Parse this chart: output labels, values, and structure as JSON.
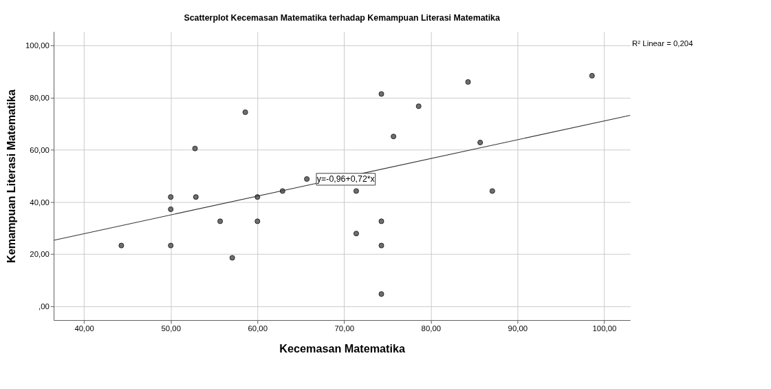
{
  "chart_data": {
    "type": "scatter",
    "title": "Scatterplot Kecemasan Matematika terhadap Kemampuan Literasi Matematika",
    "xlabel": "Kecemasan Matematika",
    "ylabel": "Kemampuan Literasi Matematika",
    "xlim": [
      36.5,
      103
    ],
    "ylim": [
      -5.3,
      105.3
    ],
    "xticks": [
      {
        "value": 40,
        "label": "40,00"
      },
      {
        "value": 50,
        "label": "50,00"
      },
      {
        "value": 60,
        "label": "60,00"
      },
      {
        "value": 70,
        "label": "70,00"
      },
      {
        "value": 80,
        "label": "80,00"
      },
      {
        "value": 90,
        "label": "90,00"
      },
      {
        "value": 100,
        "label": "100,00"
      }
    ],
    "yticks": [
      {
        "value": 0,
        "label": ",00"
      },
      {
        "value": 20,
        "label": "20,00"
      },
      {
        "value": 40,
        "label": "40,00"
      },
      {
        "value": 60,
        "label": "60,00"
      },
      {
        "value": 80,
        "label": "80,00"
      },
      {
        "value": 100,
        "label": "100,00"
      }
    ],
    "grid": true,
    "marker": "circle",
    "series": [
      {
        "type": "scatter",
        "color": "#6e6e6e",
        "x": [
          44.3,
          50,
          50,
          50,
          52.8,
          52.9,
          55.7,
          57.1,
          58.6,
          60,
          60,
          62.9,
          65.7,
          71.4,
          71.4,
          74.3,
          74.3,
          74.3,
          74.3,
          75.7,
          78.6,
          84.3,
          85.7,
          87.1,
          98.6
        ],
        "values": [
          23.3,
          41.9,
          37.2,
          23.3,
          60.5,
          41.9,
          32.6,
          18.6,
          74.4,
          41.9,
          32.6,
          44.2,
          48.8,
          44.2,
          27.9,
          81.4,
          32.6,
          23.3,
          4.7,
          65.1,
          76.7,
          86.0,
          62.8,
          44.2,
          88.4
        ]
      },
      {
        "type": "line",
        "color": "#333333",
        "marker": "none",
        "x": [
          36.5,
          103
        ],
        "values": [
          25.3,
          73.2
        ]
      }
    ],
    "annotations": [
      {
        "text": "y=-0,96+0,72*x",
        "x": 70.2,
        "y": 48.7
      },
      "R² Linear = 0,204"
    ]
  }
}
